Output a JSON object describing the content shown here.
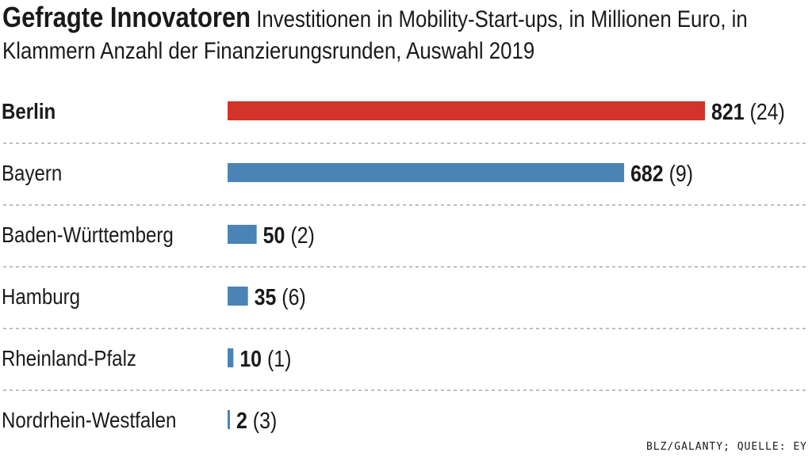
{
  "header": {
    "title": "Gefragte Innovatoren",
    "subtitle": "Investitionen in Mobility-Start-ups, in Millionen Euro, in Klammern Anzahl der Finanzierungsrunden, Auswahl 2019"
  },
  "source": "BLZ/GALANTY; QUELLE: EY",
  "colors": {
    "highlight": "#d13428",
    "bar": "#4a83b5",
    "divider": "#999999",
    "text": "#1a1a1a"
  },
  "chart_data": {
    "type": "bar",
    "orientation": "horizontal",
    "title": "Gefragte Innovatoren",
    "subtitle": "Investitionen in Mobility-Start-ups, in Millionen Euro, in Klammern Anzahl der Finanzierungsrunden, Auswahl 2019",
    "categories": [
      "Berlin",
      "Bayern",
      "Baden-Württemberg",
      "Hamburg",
      "Rheinland-Pfalz",
      "Nordrhein-Westfalen"
    ],
    "values": [
      821,
      682,
      50,
      35,
      10,
      2
    ],
    "rounds": [
      24,
      9,
      2,
      6,
      1,
      3
    ],
    "highlighted": [
      "Berlin"
    ],
    "xlim": [
      0,
      821
    ],
    "grid": false,
    "legend": "none"
  }
}
